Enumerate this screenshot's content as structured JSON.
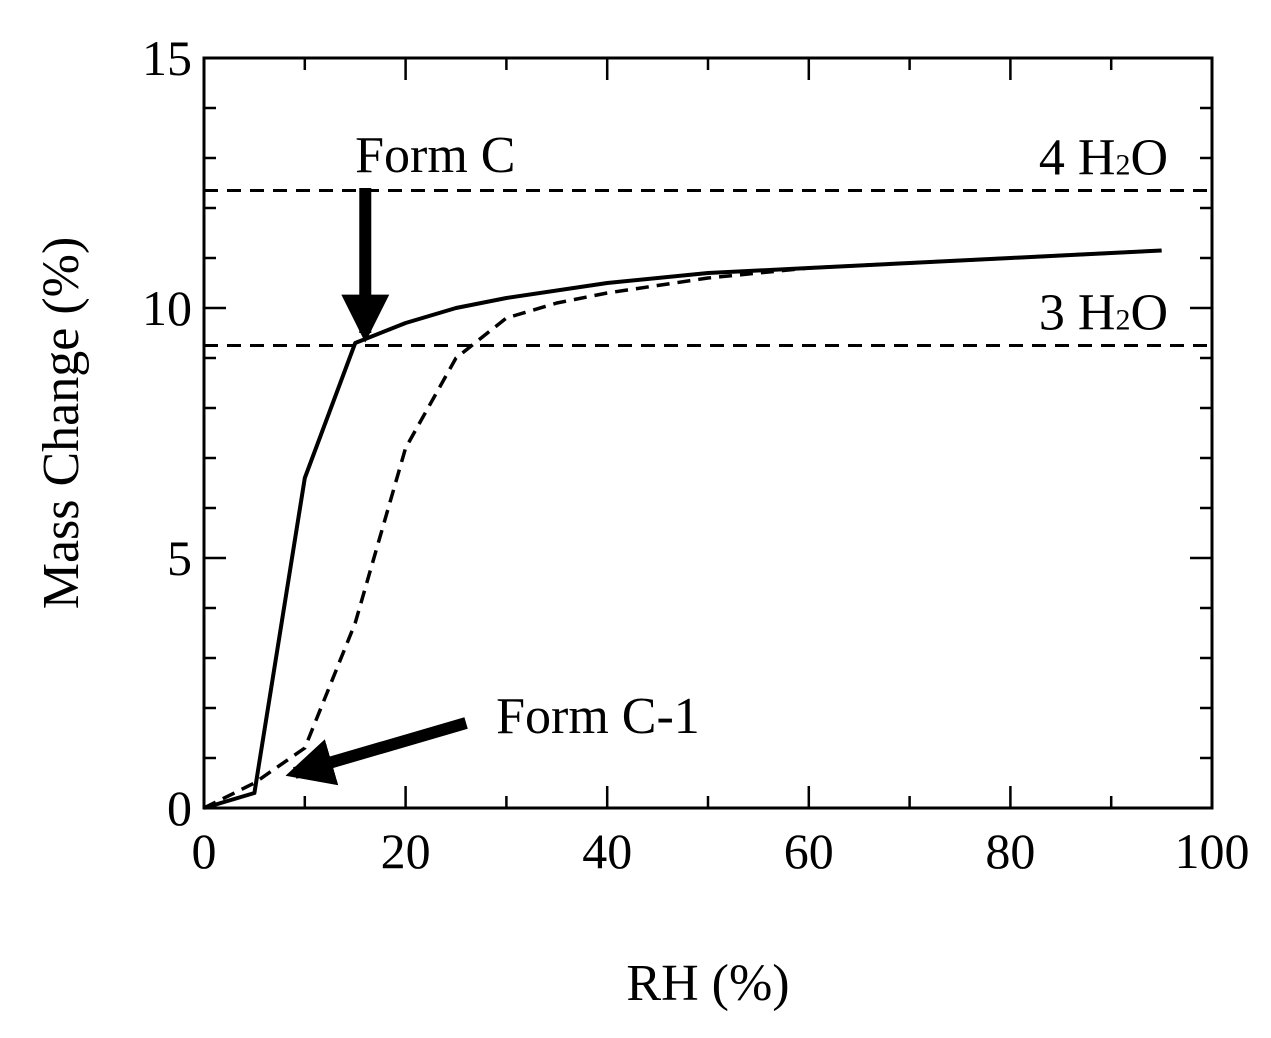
{
  "chart_data": {
    "type": "line",
    "xlabel": "RH (%)",
    "ylabel": "Mass Change (%)",
    "xlim": [
      0,
      100
    ],
    "ylim": [
      0,
      15
    ],
    "x_ticks": [
      0,
      20,
      40,
      60,
      80,
      100
    ],
    "y_ticks": [
      0,
      5,
      10,
      15
    ],
    "x_tick_labels": [
      "0",
      "20",
      "40",
      "60",
      "80",
      "100"
    ],
    "y_tick_labels": [
      "0",
      "5",
      "10",
      "15"
    ],
    "grid": false,
    "series": [
      {
        "style": "solid",
        "x": [
          0,
          5,
          10,
          15,
          20,
          25,
          30,
          40,
          50,
          60,
          70,
          80,
          90,
          95
        ],
        "y": [
          0.0,
          0.3,
          6.6,
          9.3,
          9.7,
          10.0,
          10.2,
          10.5,
          10.7,
          10.8,
          10.9,
          11.0,
          11.1,
          11.15
        ]
      },
      {
        "style": "dashed",
        "x": [
          0,
          5,
          10,
          15,
          20,
          25,
          30,
          35,
          40,
          50,
          60,
          70,
          80,
          90,
          95
        ],
        "y": [
          0.0,
          0.5,
          1.2,
          3.7,
          7.2,
          9.0,
          9.8,
          10.1,
          10.3,
          10.6,
          10.8,
          10.9,
          11.0,
          11.1,
          11.15
        ]
      }
    ],
    "reference_lines": [
      {
        "y": 12.35,
        "style": "dashed",
        "label": "4 H",
        "sub": "2",
        "label_end": "O"
      },
      {
        "y": 9.25,
        "style": "dashed",
        "label": "3 H",
        "sub": "2",
        "label_end": "O"
      }
    ],
    "annotations": [
      {
        "text": "Form C",
        "arrow_from": [
          16,
          12.4
        ],
        "arrow_to": [
          16,
          9.5
        ]
      },
      {
        "text": "Form C-1",
        "arrow_from": [
          26,
          1.7
        ],
        "arrow_to": [
          9,
          0.7
        ]
      }
    ]
  }
}
